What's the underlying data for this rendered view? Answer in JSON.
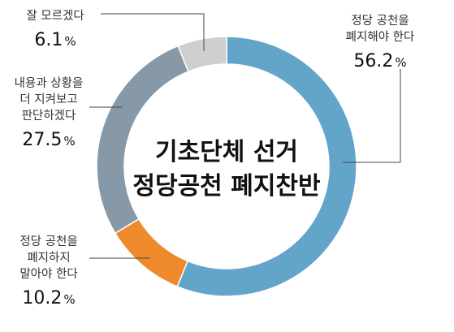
{
  "chart_data": {
    "type": "pie",
    "title": "기초단체 선거\n정당공천 폐지찬반",
    "title_lines": [
      "기초단체 선거",
      "정당공천 폐지찬반"
    ],
    "slices": [
      {
        "label": "정당 공천을 폐지해야 한다",
        "label_lines": [
          "정당 공천을",
          "폐지해야 한다"
        ],
        "value": 56.2,
        "value_text": "56.2",
        "color": "#63a5c9"
      },
      {
        "label": "정당 공천을 폐지하지 말아야 한다",
        "label_lines": [
          "정당 공천을",
          "폐지하지",
          "말아야 한다"
        ],
        "value": 10.2,
        "value_text": "10.2",
        "color": "#ee8a2c"
      },
      {
        "label": "내용과 상황을 더 지켜보고 판단하겠다",
        "label_lines": [
          "내용과 상황을",
          "더 지켜보고",
          "판단하겠다"
        ],
        "value": 27.5,
        "value_text": "27.5",
        "color": "#8799a6"
      },
      {
        "label": "잘 모르겠다",
        "label_lines": [
          "잘 모르겠다"
        ],
        "value": 6.1,
        "value_text": "6.1",
        "color": "#cfcfcf"
      }
    ],
    "unit": "%",
    "donut": true
  }
}
